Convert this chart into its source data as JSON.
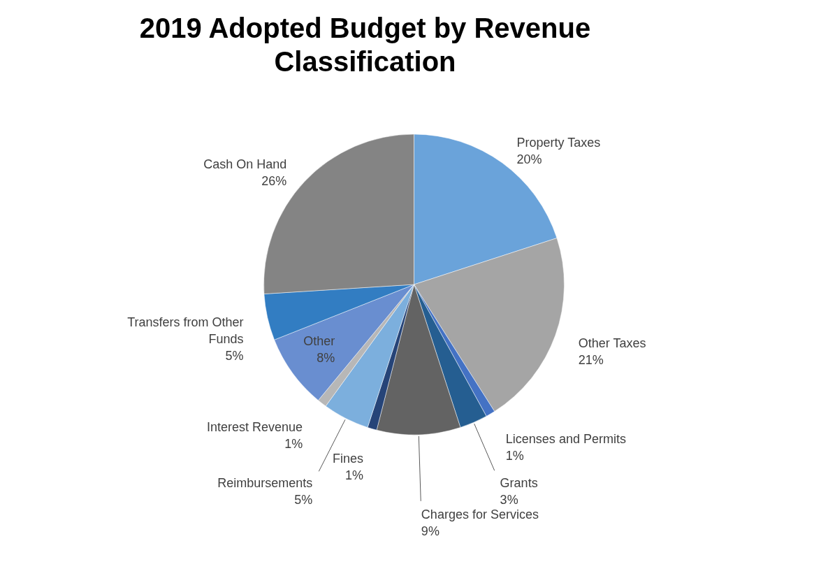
{
  "chart_data": {
    "type": "pie",
    "title": "2019 Adopted Budget by Revenue Classification",
    "categories": [
      "Property Taxes",
      "Other Taxes",
      "Licenses and Permits",
      "Grants",
      "Charges for Services",
      "Fines",
      "Reimbursements",
      "Interest Revenue",
      "Other",
      "Transfers from Other Funds",
      "Cash On Hand"
    ],
    "values": [
      20,
      21,
      1,
      3,
      9,
      1,
      5,
      1,
      8,
      5,
      26
    ],
    "value_labels": [
      "20%",
      "21%",
      "1%",
      "3%",
      "9%",
      "1%",
      "5%",
      "1%",
      "8%",
      "5%",
      "26%"
    ],
    "colors": [
      "#6aa3da",
      "#a5a5a5",
      "#4472c4",
      "#255e91",
      "#636363",
      "#264478",
      "#7cafdd",
      "#b7b7b7",
      "#698ed0",
      "#327dc2",
      "#848484"
    ]
  }
}
